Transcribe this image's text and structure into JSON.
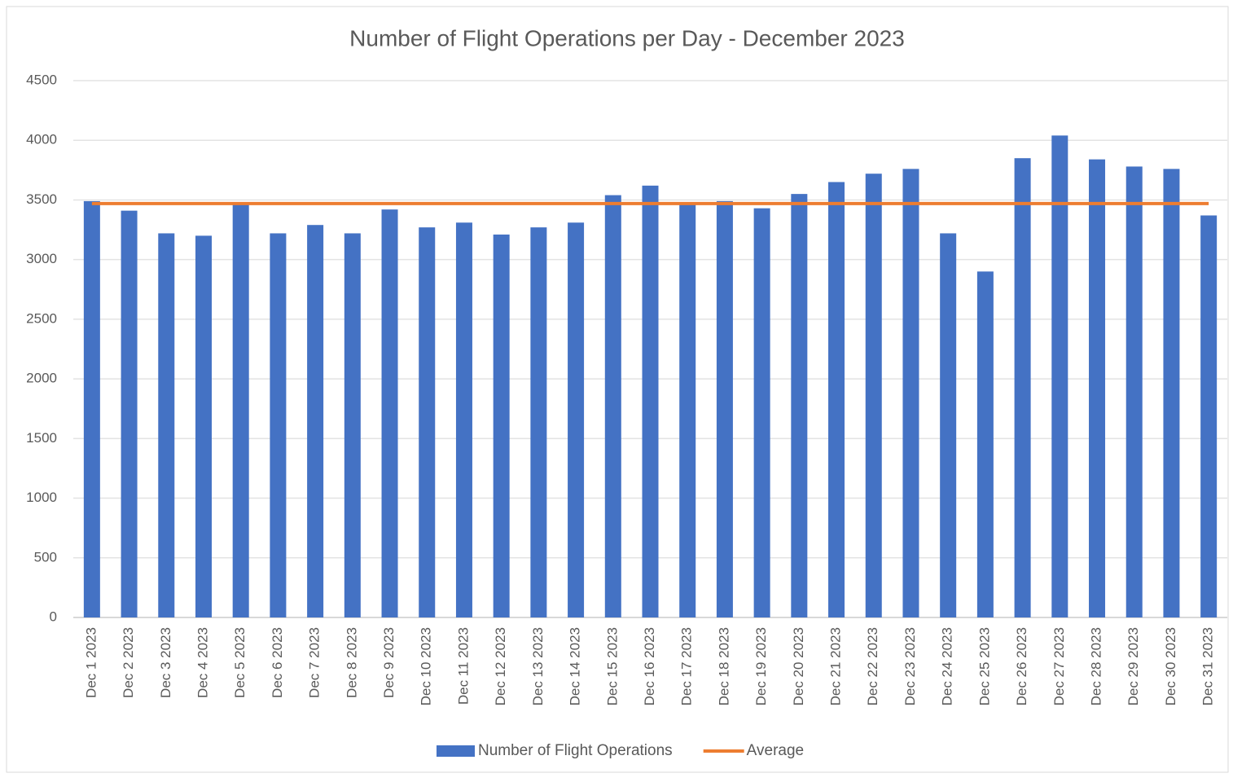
{
  "chart_data": {
    "type": "bar",
    "title": "Number of Flight Operations per Day - December  2023",
    "categories": [
      "Dec  1 2023",
      "Dec  2 2023",
      "Dec  3 2023",
      "Dec  4 2023",
      "Dec  5 2023",
      "Dec  6 2023",
      "Dec  7 2023",
      "Dec  8 2023",
      "Dec  9 2023",
      "Dec 10 2023",
      "Dec 11 2023",
      "Dec 12 2023",
      "Dec 13 2023",
      "Dec 14 2023",
      "Dec 15 2023",
      "Dec 16 2023",
      "Dec 17 2023",
      "Dec 18 2023",
      "Dec 19 2023",
      "Dec 20 2023",
      "Dec 21 2023",
      "Dec 22 2023",
      "Dec 23 2023",
      "Dec 24 2023",
      "Dec 25 2023",
      "Dec 26 2023",
      "Dec 27 2023",
      "Dec 28 2023",
      "Dec 29 2023",
      "Dec 30 2023",
      "Dec 31 2023"
    ],
    "series": [
      {
        "name": "Number of Flight Operations",
        "type": "bar",
        "color": "#4472c4",
        "values": [
          3490,
          3410,
          3220,
          3200,
          3460,
          3220,
          3290,
          3220,
          3420,
          3270,
          3310,
          3210,
          3270,
          3310,
          3540,
          3620,
          3470,
          3490,
          3430,
          3550,
          3650,
          3720,
          3760,
          3220,
          2900,
          3850,
          4040,
          3840,
          3780,
          3760,
          3370
        ]
      },
      {
        "name": "Average",
        "type": "line",
        "color": "#ed7d31",
        "values": [
          3470,
          3470,
          3470,
          3470,
          3470,
          3470,
          3470,
          3470,
          3470,
          3470,
          3470,
          3470,
          3470,
          3470,
          3470,
          3470,
          3470,
          3470,
          3470,
          3470,
          3470,
          3470,
          3470,
          3470,
          3470,
          3470,
          3470,
          3470,
          3470,
          3470,
          3470
        ]
      }
    ],
    "ylim": [
      0,
      4500
    ],
    "yticks": [
      0,
      500,
      1000,
      1500,
      2000,
      2500,
      3000,
      3500,
      4000,
      4500
    ],
    "grid": true,
    "legend": "bottom"
  }
}
